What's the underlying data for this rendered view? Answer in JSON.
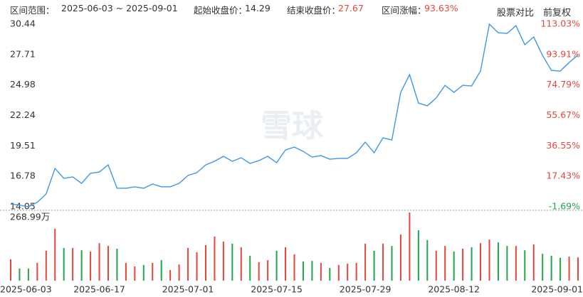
{
  "header": {
    "range_label": "区间范围：",
    "range": "2025-06-03 ~ 2025-09-01",
    "start_label": "起始收盘价：",
    "start_close": 14.29,
    "end_label": "结束收盘价：",
    "end_close": 27.67,
    "change_label": "区间涨幅：",
    "change": "93.63%",
    "compare_button": "股票对比",
    "adjust_button": "前复权"
  },
  "watermark": "雪球",
  "chart_data": [
    {
      "type": "line",
      "categories": [
        "2025-06-03",
        null,
        null,
        null,
        null,
        null,
        null,
        null,
        null,
        null,
        "2025-06-17",
        null,
        null,
        null,
        null,
        null,
        null,
        null,
        null,
        null,
        "2025-07-01",
        null,
        null,
        null,
        null,
        null,
        null,
        null,
        null,
        null,
        "2025-07-15",
        null,
        null,
        null,
        null,
        null,
        null,
        null,
        null,
        null,
        "2025-07-29",
        null,
        null,
        null,
        null,
        null,
        null,
        null,
        null,
        null,
        "2025-08-12",
        null,
        null,
        null,
        null,
        null,
        null,
        null,
        null,
        null,
        null,
        null,
        null,
        null,
        "2025-09-01"
      ],
      "values": [
        14.29,
        14.2,
        14.05,
        14.45,
        15.2,
        17.49,
        16.6,
        16.73,
        16.15,
        17.05,
        17.17,
        17.81,
        15.71,
        15.71,
        15.84,
        15.71,
        16.09,
        15.84,
        15.84,
        16.15,
        16.86,
        17.11,
        17.81,
        18.13,
        18.58,
        18.13,
        18.45,
        17.94,
        18.19,
        18.58,
        18.0,
        19.15,
        19.41,
        19.02,
        18.51,
        18.64,
        18.32,
        18.39,
        18.39,
        18.9,
        19.85,
        18.9,
        20.24,
        20.04,
        24.32,
        25.91,
        23.36,
        23.11,
        23.81,
        24.95,
        24.32,
        24.95,
        24.89,
        26.23,
        30.44,
        29.67,
        29.61,
        30.31,
        28.59,
        29.29,
        27.63,
        26.29,
        26.23,
        27.0,
        27.67
      ],
      "color": "#3d97e6",
      "ylim": [
        14.05,
        30.44
      ],
      "yticks": [
        14.05,
        16.78,
        19.51,
        22.24,
        24.98,
        27.71,
        30.44
      ],
      "y2lim": [
        -1.69,
        113.03
      ],
      "y2ticks": [
        {
          "value": -1.69,
          "label": "-1.69%"
        },
        {
          "value": 17.43,
          "label": "17.43%"
        },
        {
          "value": 36.55,
          "label": "36.55%"
        },
        {
          "value": 55.67,
          "label": "55.67%"
        },
        {
          "value": 74.79,
          "label": "74.79%"
        },
        {
          "value": 93.91,
          "label": "93.91%"
        },
        {
          "value": 113.03,
          "label": "113.03%"
        }
      ],
      "up_color": "#e5463c",
      "down_color": "#1fa84a"
    },
    {
      "type": "bar",
      "values": [
        84,
        48,
        48,
        70,
        118,
        205,
        129,
        129,
        120,
        115,
        148,
        137,
        126,
        70,
        56,
        62,
        70,
        81,
        42,
        64,
        129,
        112,
        140,
        174,
        154,
        146,
        132,
        98,
        73,
        81,
        118,
        132,
        104,
        76,
        78,
        70,
        50,
        62,
        67,
        70,
        146,
        118,
        146,
        137,
        182,
        268.99,
        199,
        160,
        118,
        137,
        115,
        126,
        132,
        148,
        162,
        151,
        137,
        137,
        120,
        143,
        106,
        98,
        90,
        95,
        92
      ],
      "ylim": [
        0,
        268.99
      ],
      "yticks": [
        {
          "value": 268.99,
          "label": "268.99万"
        }
      ],
      "up_color": "#e5463c",
      "down_color": "#1fa84a"
    }
  ]
}
